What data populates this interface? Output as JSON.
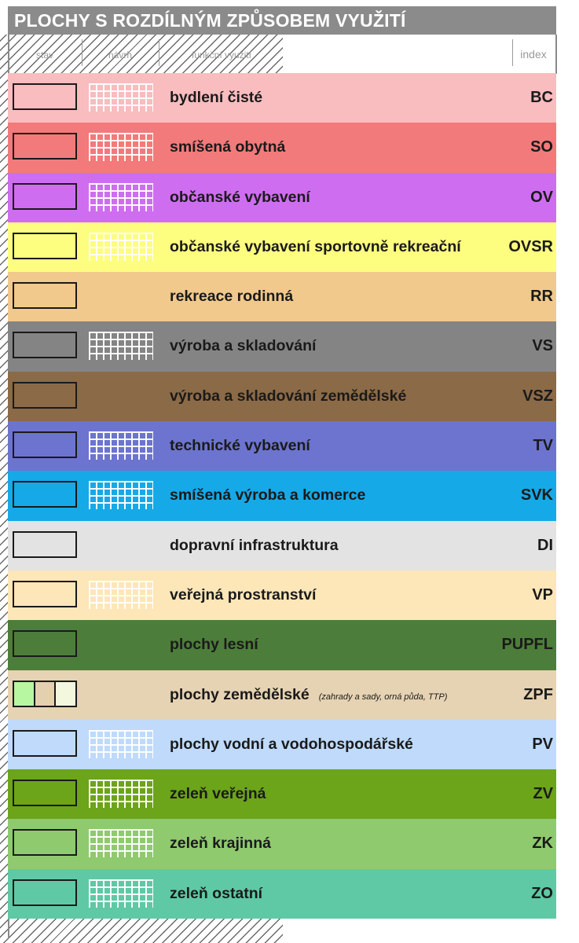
{
  "title": "PLOCHY S ROZDÍLNÝM ZPŮSOBEM VYUŽITÍ",
  "headers": {
    "stav": "stav",
    "navrh": "návrh",
    "funkcni_vyuziti": "funkční využití",
    "index": "index"
  },
  "rows": [
    {
      "label": "bydlení čisté",
      "code": "BC",
      "color": "#f9bcbf",
      "proposal": true
    },
    {
      "label": "smíšená obytná",
      "code": "SO",
      "color": "#f27a7a",
      "proposal": true
    },
    {
      "label": "občanské vybavení",
      "code": "OV",
      "color": "#cf6df0",
      "proposal": true
    },
    {
      "label": "občanské vybavení sportovně rekreační",
      "code": "OVSR",
      "color": "#fdfd80",
      "proposal": true
    },
    {
      "label": "rekreace rodinná",
      "code": "RR",
      "color": "#f1c98c",
      "proposal": false
    },
    {
      "label": "výroba a skladování",
      "code": "VS",
      "color": "#848484",
      "proposal": true
    },
    {
      "label": "výroba a skladování zemědělské",
      "code": "VSZ",
      "color": "#8b6a47",
      "proposal": false
    },
    {
      "label": "technické vybavení",
      "code": "TV",
      "color": "#6c74cf",
      "proposal": true
    },
    {
      "label": "smíšená výroba a komerce",
      "code": "SVK",
      "color": "#16a9e7",
      "proposal": true
    },
    {
      "label": "dopravní infrastruktura",
      "code": "DI",
      "color": "#e3e3e3",
      "proposal": false
    },
    {
      "label": "veřejná prostranství",
      "code": "VP",
      "color": "#fde6b8",
      "proposal": true
    },
    {
      "label": "plochy lesní",
      "code": "PUPFL",
      "color": "#4d7d3a",
      "proposal": false
    },
    {
      "label": "plochy zemědělské",
      "code": "ZPF",
      "color": "#e6d3b3",
      "proposal": false,
      "note": "(zahrady a sady, orná půda, TTP)",
      "split_colors": [
        "#b7f7a2",
        "#e4cfae",
        "#f2f7dd"
      ]
    },
    {
      "label": "plochy vodní a vodohospodářské",
      "code": "PV",
      "color": "#bfdafb",
      "proposal": true
    },
    {
      "label": "zeleň veřejná",
      "code": "ZV",
      "color": "#6ca41a",
      "proposal": true
    },
    {
      "label": "zeleň krajinná",
      "code": "ZK",
      "color": "#8fca6e",
      "proposal": true
    },
    {
      "label": "zeleň ostatní",
      "code": "ZO",
      "color": "#5fc9a5",
      "proposal": true
    }
  ]
}
